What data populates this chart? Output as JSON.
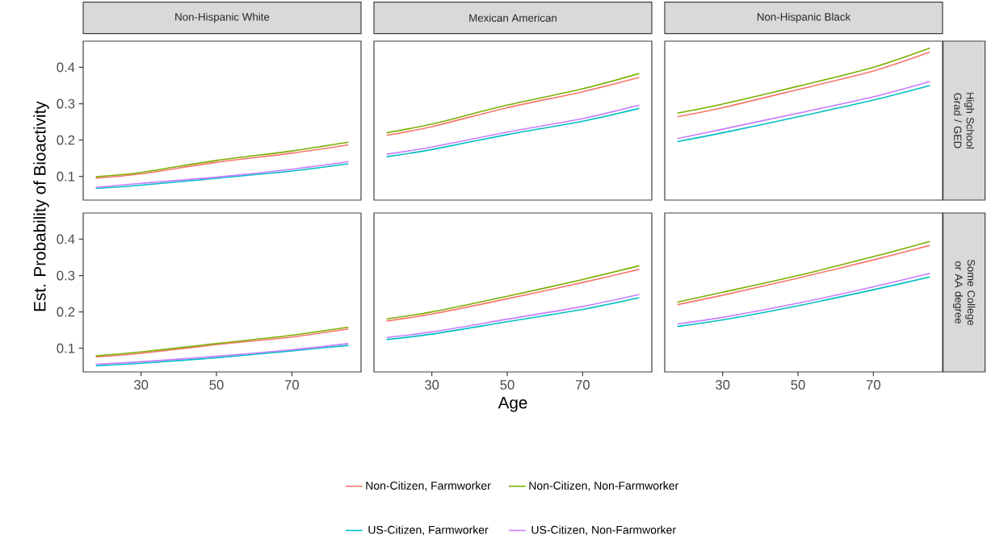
{
  "chart_data": [
    {
      "type": "line",
      "title": "Non-Hispanic White",
      "ylabel": "Est. Probability of Bioactivity",
      "x": [
        18,
        30,
        50,
        70,
        85
      ],
      "xlim": [
        14.65,
        88.35
      ],
      "ylim": [
        0.035,
        0.472
      ],
      "xticks": [
        30,
        50,
        70
      ],
      "yticks": [
        0.1,
        0.2,
        0.3,
        0.4
      ],
      "tick_labels": "y",
      "series": [
        {
          "color": "#f8766d",
          "values": [
            0.095,
            0.107,
            0.139,
            0.164,
            0.187
          ]
        },
        {
          "color": "#7cae00",
          "values": [
            0.099,
            0.111,
            0.144,
            0.17,
            0.194
          ]
        },
        {
          "color": "#00bfc4",
          "values": [
            0.067,
            0.076,
            0.095,
            0.115,
            0.135
          ]
        },
        {
          "color": "#c77cff",
          "values": [
            0.07,
            0.081,
            0.098,
            0.12,
            0.141
          ]
        }
      ]
    },
    {
      "type": "line",
      "title": "Mexican American",
      "x": [
        18,
        30,
        50,
        70,
        85
      ],
      "xlim": [
        14.65,
        88.35
      ],
      "ylim": [
        0.035,
        0.472
      ],
      "xticks": [
        30,
        50,
        70
      ],
      "yticks": [
        0.1,
        0.2,
        0.3,
        0.4
      ],
      "tick_labels": false,
      "series": [
        {
          "color": "#f8766d",
          "values": [
            0.213,
            0.237,
            0.289,
            0.333,
            0.372
          ]
        },
        {
          "color": "#7cae00",
          "values": [
            0.22,
            0.244,
            0.296,
            0.341,
            0.383
          ]
        },
        {
          "color": "#00bfc4",
          "values": [
            0.154,
            0.174,
            0.215,
            0.252,
            0.287
          ]
        },
        {
          "color": "#c77cff",
          "values": [
            0.161,
            0.181,
            0.222,
            0.259,
            0.296
          ]
        }
      ]
    },
    {
      "type": "line",
      "title": "Non-Hispanic Black",
      "y2label": "High School Grad / GED",
      "x": [
        18,
        30,
        50,
        70,
        85
      ],
      "xlim": [
        14.65,
        88.35
      ],
      "ylim": [
        0.035,
        0.472
      ],
      "xticks": [
        30,
        50,
        70
      ],
      "yticks": [
        0.1,
        0.2,
        0.3,
        0.4
      ],
      "tick_labels": false,
      "series": [
        {
          "color": "#f8766d",
          "values": [
            0.264,
            0.289,
            0.339,
            0.39,
            0.442
          ]
        },
        {
          "color": "#7cae00",
          "values": [
            0.274,
            0.299,
            0.348,
            0.4,
            0.453
          ]
        },
        {
          "color": "#00bfc4",
          "values": [
            0.196,
            0.22,
            0.264,
            0.31,
            0.35
          ]
        },
        {
          "color": "#c77cff",
          "values": [
            0.204,
            0.23,
            0.274,
            0.319,
            0.361
          ]
        }
      ]
    },
    {
      "type": "line",
      "x": [
        18,
        30,
        50,
        70,
        85
      ],
      "xlim": [
        14.65,
        88.35
      ],
      "ylim": [
        0.035,
        0.472
      ],
      "xticks": [
        30,
        50,
        70
      ],
      "yticks": [
        0.1,
        0.2,
        0.3,
        0.4
      ],
      "series": [
        {
          "color": "#f8766d",
          "values": [
            0.076,
            0.086,
            0.11,
            0.131,
            0.153
          ]
        },
        {
          "color": "#7cae00",
          "values": [
            0.079,
            0.09,
            0.113,
            0.136,
            0.158
          ]
        },
        {
          "color": "#00bfc4",
          "values": [
            0.052,
            0.059,
            0.074,
            0.093,
            0.108
          ]
        },
        {
          "color": "#c77cff",
          "values": [
            0.056,
            0.063,
            0.078,
            0.096,
            0.113
          ]
        }
      ]
    },
    {
      "type": "line",
      "xlabel": "Age",
      "legend": "bottom",
      "x": [
        18,
        30,
        50,
        70,
        85
      ],
      "xlim": [
        14.65,
        88.35
      ],
      "ylim": [
        0.035,
        0.472
      ],
      "xticks": [
        30,
        50,
        70
      ],
      "yticks": [
        0.1,
        0.2,
        0.3,
        0.4
      ],
      "tick_labels": "x",
      "series": [
        {
          "name": "Non-Citizen, Farmworker",
          "color": "#f8766d",
          "values": [
            0.175,
            0.194,
            0.236,
            0.281,
            0.317
          ]
        },
        {
          "name": "Non-Citizen, Non-Farmworker",
          "color": "#7cae00",
          "values": [
            0.181,
            0.2,
            0.243,
            0.289,
            0.327
          ]
        },
        {
          "name": "US-Citizen, Farmworker",
          "color": "#00bfc4",
          "values": [
            0.124,
            0.139,
            0.173,
            0.207,
            0.239
          ]
        },
        {
          "name": "US-Citizen, Non-Farmworker",
          "color": "#c77cff",
          "values": [
            0.13,
            0.145,
            0.18,
            0.215,
            0.248
          ]
        }
      ]
    },
    {
      "type": "line",
      "y2label": "Some College or AA degree",
      "x": [
        18,
        30,
        50,
        70,
        85
      ],
      "xlim": [
        14.65,
        88.35
      ],
      "ylim": [
        0.035,
        0.472
      ],
      "xticks": [
        30,
        50,
        70
      ],
      "yticks": [
        0.1,
        0.2,
        0.3,
        0.4
      ],
      "tick_labels": "x",
      "series": [
        {
          "color": "#f8766d",
          "values": [
            0.22,
            0.246,
            0.293,
            0.343,
            0.383
          ]
        },
        {
          "color": "#7cae00",
          "values": [
            0.227,
            0.254,
            0.3,
            0.352,
            0.394
          ]
        },
        {
          "color": "#00bfc4",
          "values": [
            0.16,
            0.178,
            0.217,
            0.261,
            0.296
          ]
        },
        {
          "color": "#c77cff",
          "values": [
            0.167,
            0.185,
            0.224,
            0.269,
            0.306
          ]
        }
      ]
    }
  ]
}
